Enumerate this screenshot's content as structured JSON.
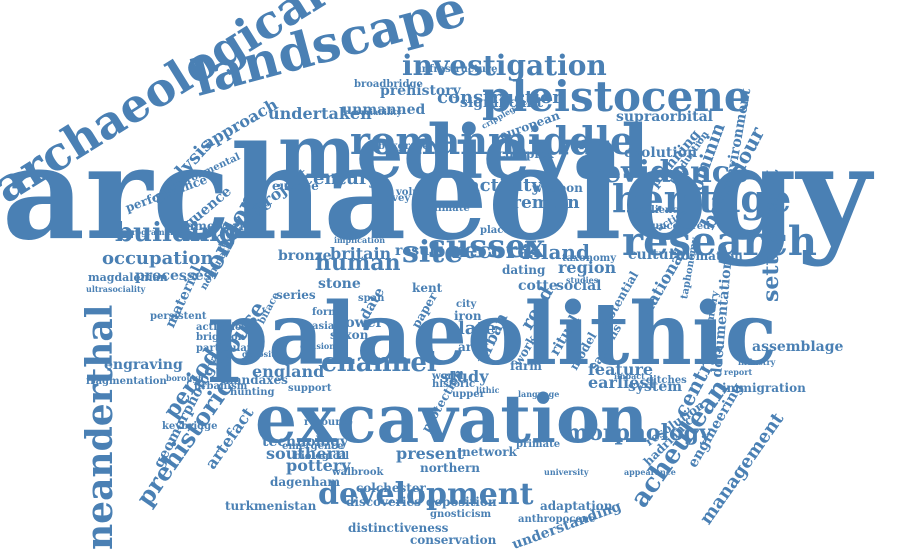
{
  "word_color": "#4a80b4",
  "background_color": "#ffffff",
  "words": [
    {
      "text": "archaeology"
    },
    {
      "text": "palaeolithic"
    },
    {
      "text": "excavation"
    },
    {
      "text": "medieval"
    },
    {
      "text": "landscape"
    },
    {
      "text": "archaeological"
    },
    {
      "text": "pleistocene"
    },
    {
      "text": "romanmiddle"
    },
    {
      "text": "research"
    },
    {
      "text": "heritage"
    },
    {
      "text": "evidence"
    },
    {
      "text": "investigation"
    },
    {
      "text": "development"
    },
    {
      "text": "building"
    },
    {
      "text": "sussex"
    },
    {
      "text": "human"
    },
    {
      "text": "site"
    },
    {
      "text": "channel"
    },
    {
      "text": "neanderthal"
    },
    {
      "text": "prehistoric"
    },
    {
      "text": "acheulean"
    },
    {
      "text": "morphology"
    },
    {
      "text": "construction"
    },
    {
      "text": "settlement"
    },
    {
      "text": "behaviour"
    },
    {
      "text": "management"
    },
    {
      "text": "occupation"
    },
    {
      "text": "period"
    },
    {
      "text": "century"
    },
    {
      "text": "record"
    },
    {
      "text": "island"
    },
    {
      "text": "activity"
    },
    {
      "text": "remain"
    },
    {
      "text": "london"
    },
    {
      "text": "brelade"
    },
    {
      "text": "project"
    },
    {
      "text": "undertaken"
    },
    {
      "text": "analysis"
    },
    {
      "text": "approach"
    },
    {
      "text": "house"
    },
    {
      "text": "england"
    },
    {
      "text": "technology"
    },
    {
      "text": "late"
    },
    {
      "text": "central"
    },
    {
      "text": "study"
    },
    {
      "text": "bronze"
    },
    {
      "text": "britain"
    },
    {
      "text": "result"
    },
    {
      "text": "region"
    },
    {
      "text": "social"
    },
    {
      "text": "cultural"
    },
    {
      "text": "formation"
    },
    {
      "text": "hominin"
    },
    {
      "text": "environment"
    },
    {
      "text": "evolution"
    },
    {
      "text": "supraorbital"
    },
    {
      "text": "prehistory"
    },
    {
      "text": "significant"
    },
    {
      "text": "unmanned"
    },
    {
      "text": "infrastructure"
    },
    {
      "text": "broadbridge"
    },
    {
      "text": "complex"
    },
    {
      "text": "european"
    },
    {
      "text": "sequence"
    },
    {
      "text": "framework"
    },
    {
      "text": "performance"
    },
    {
      "text": "environmental"
    },
    {
      "text": "processes"
    },
    {
      "text": "magdalenian"
    },
    {
      "text": "ultrasociality"
    },
    {
      "text": "persistent"
    },
    {
      "text": "material"
    },
    {
      "text": "fragmentation"
    },
    {
      "text": "engraving"
    },
    {
      "text": "activities"
    },
    {
      "text": "brighton"
    },
    {
      "text": "particular"
    },
    {
      "text": "handaxes"
    },
    {
      "text": "urbanism"
    },
    {
      "text": "hunting"
    },
    {
      "text": "support"
    },
    {
      "text": "stone"
    },
    {
      "text": "kent"
    },
    {
      "text": "cotte"
    },
    {
      "text": "lower"
    },
    {
      "text": "saxon"
    },
    {
      "text": "iron"
    },
    {
      "text": "city"
    },
    {
      "text": "road"
    },
    {
      "text": "urban"
    },
    {
      "text": "area"
    },
    {
      "text": "ritual"
    },
    {
      "text": "farm"
    },
    {
      "text": "feature"
    },
    {
      "text": "earliest"
    },
    {
      "text": "system"
    },
    {
      "text": "national"
    },
    {
      "text": "important"
    },
    {
      "text": "dating"
    },
    {
      "text": "series"
    },
    {
      "text": "assemblage"
    },
    {
      "text": "immigration"
    },
    {
      "text": "taphonomy"
    },
    {
      "text": "documentation"
    },
    {
      "text": "engineering"
    },
    {
      "text": "southern"
    },
    {
      "text": "pottery"
    },
    {
      "text": "present"
    },
    {
      "text": "northern"
    },
    {
      "text": "network"
    },
    {
      "text": "artefact"
    },
    {
      "text": "geomorphology"
    },
    {
      "text": "dagenham"
    },
    {
      "text": "turkmenistan"
    },
    {
      "text": "discoveries"
    },
    {
      "text": "deposition"
    },
    {
      "text": "colchester"
    },
    {
      "text": "gnosticism"
    },
    {
      "text": "adaptation"
    },
    {
      "text": "understanding"
    },
    {
      "text": "conservation"
    },
    {
      "text": "distinctiveness"
    },
    {
      "text": "anthropocene"
    },
    {
      "text": "hadrianic"
    },
    {
      "text": "resolution"
    },
    {
      "text": "keybridge"
    },
    {
      "text": "emergence"
    },
    {
      "text": "biological"
    },
    {
      "text": "walbrook"
    },
    {
      "text": "primate"
    },
    {
      "text": "university"
    },
    {
      "text": "appearance"
    },
    {
      "text": "production"
    },
    {
      "text": "planning"
    },
    {
      "text": "weapon"
    },
    {
      "text": "boxgrove"
    },
    {
      "text": "europe"
    },
    {
      "text": "survey"
    },
    {
      "text": "volume"
    },
    {
      "text": "climate"
    },
    {
      "text": "place"
    },
    {
      "text": "practice"
    },
    {
      "text": "resilience"
    },
    {
      "text": "uncovered"
    },
    {
      "text": "taxonomy"
    },
    {
      "text": "studies"
    },
    {
      "text": "ditches"
    },
    {
      "text": "protection"
    },
    {
      "text": "historic"
    },
    {
      "text": "upper"
    },
    {
      "text": "world"
    },
    {
      "text": "work"
    },
    {
      "text": "model"
    },
    {
      "text": "sapiens"
    },
    {
      "text": "potential"
    },
    {
      "text": "paper"
    },
    {
      "text": "asia"
    },
    {
      "text": "form"
    },
    {
      "text": "date"
    },
    {
      "text": "span"
    },
    {
      "text": "lithic"
    },
    {
      "text": "report"
    },
    {
      "text": "industry"
    },
    {
      "text": "variability"
    },
    {
      "text": "cripplegate"
    },
    {
      "text": "symmetry"
    },
    {
      "text": "programme"
    },
    {
      "text": "nomination"
    },
    {
      "text": "deposit"
    },
    {
      "text": "resource"
    },
    {
      "text": "division"
    },
    {
      "text": "biface"
    },
    {
      "text": "borough"
    },
    {
      "text": "impact"
    },
    {
      "text": "language"
    },
    {
      "text": "implication"
    },
    {
      "text": "gorge"
    },
    {
      "text": "field"
    },
    {
      "text": "ancient"
    }
  ]
}
